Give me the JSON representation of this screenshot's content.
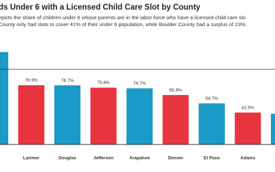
{
  "chart_data": {
    "type": "bar",
    "title": "ds Under 6 with a Licensed Child Care Slot by County",
    "subtitle": [
      "epicts the share of children under 6 whose parents are in the labor force who have a licensed child care slo",
      "County only had slots to cover 41% of their under 6 population, while Boulder County had a surplus of 23%."
    ],
    "categories": [
      null,
      "Larimer",
      "Douglas",
      "Jefferson",
      "Arapahoe",
      "Denver",
      "El Paso",
      "Adams",
      null
    ],
    "values": [
      123,
      78.9,
      78.7,
      75.6,
      74.7,
      65.8,
      54.7,
      42.5,
      41
    ],
    "value_labels": [
      null,
      "78.9%",
      "78.7%",
      "75.6%",
      "74.7%",
      "65.8%",
      "54.7%",
      "42.5%",
      null
    ],
    "colors": [
      "#1a9bc7",
      "#e8343f",
      "#1a9bc7",
      "#e8343f",
      "#1a9bc7",
      "#e8343f",
      "#1a9bc7",
      "#e8343f",
      "#1a9bc7"
    ],
    "reference_line": 100,
    "ylim": [
      0,
      130
    ]
  }
}
